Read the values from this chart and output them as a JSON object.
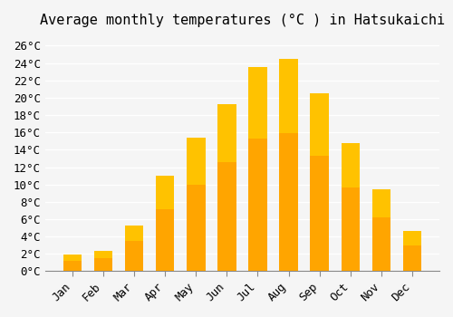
{
  "title": "Average monthly temperatures (°C ) in Hatsukaichi",
  "months": [
    "Jan",
    "Feb",
    "Mar",
    "Apr",
    "May",
    "Jun",
    "Jul",
    "Aug",
    "Sep",
    "Oct",
    "Nov",
    "Dec"
  ],
  "temperatures": [
    1.9,
    2.3,
    5.3,
    11.0,
    15.4,
    19.3,
    23.5,
    24.5,
    20.5,
    14.8,
    9.5,
    4.6
  ],
  "bar_color_main": "#FFA500",
  "bar_color_gradient_top": "#FFD700",
  "ylim": [
    0,
    27
  ],
  "ytick_step": 2,
  "background_color": "#f5f5f5",
  "grid_color": "#ffffff",
  "title_fontsize": 11,
  "tick_fontsize": 9,
  "font_family": "monospace"
}
